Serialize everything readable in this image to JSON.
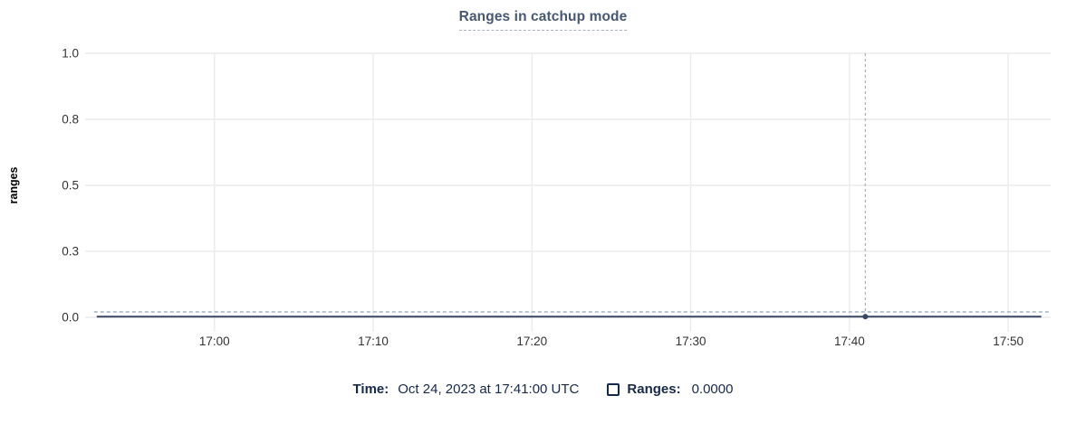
{
  "header": {
    "title": "Ranges in catchup mode"
  },
  "axes": {
    "y_label": "ranges",
    "y_ticks": [
      "1.0",
      "0.8",
      "0.5",
      "0.3",
      "0.0"
    ],
    "x_ticks": [
      "17:00",
      "17:10",
      "17:20",
      "17:30",
      "17:40",
      "17:50"
    ]
  },
  "legend": {
    "time_label": "Time:",
    "time_value": "Oct 24, 2023 at 17:41:00 UTC",
    "series_checkbox_checked": false,
    "series_label": "Ranges:",
    "series_value": "0.0000"
  },
  "colors": {
    "title_text": "#475872",
    "legend_text": "#17294b",
    "tick_text": "#333333",
    "axis_label_text": "#000000",
    "gridline": "#ebebeb",
    "series_line": "#3a4963",
    "series_dashed_line": "#b9c7d2",
    "crosshair_line": "#9fb4c2",
    "hover_dot": "#3a4963",
    "title_underline": "#a9b2bc"
  },
  "chart_data": {
    "type": "line",
    "title": "Ranges in catchup mode",
    "xlabel": "",
    "ylabel": "ranges",
    "x_tick_labels": [
      "17:00",
      "17:10",
      "17:20",
      "17:30",
      "17:40",
      "17:50"
    ],
    "y_tick_labels": [
      "0.0",
      "0.3",
      "0.5",
      "0.8",
      "1.0"
    ],
    "ylim": [
      0,
      1
    ],
    "grid": true,
    "legend_position": "bottom",
    "series": [
      {
        "name": "Ranges",
        "x": [
          "16:52:35",
          "17:52:05"
        ],
        "values": [
          0,
          0
        ]
      }
    ],
    "crosshair": {
      "x": "17:41",
      "time_full": "Oct 24, 2023 at 17:41:00 UTC",
      "value": 0.0
    }
  }
}
